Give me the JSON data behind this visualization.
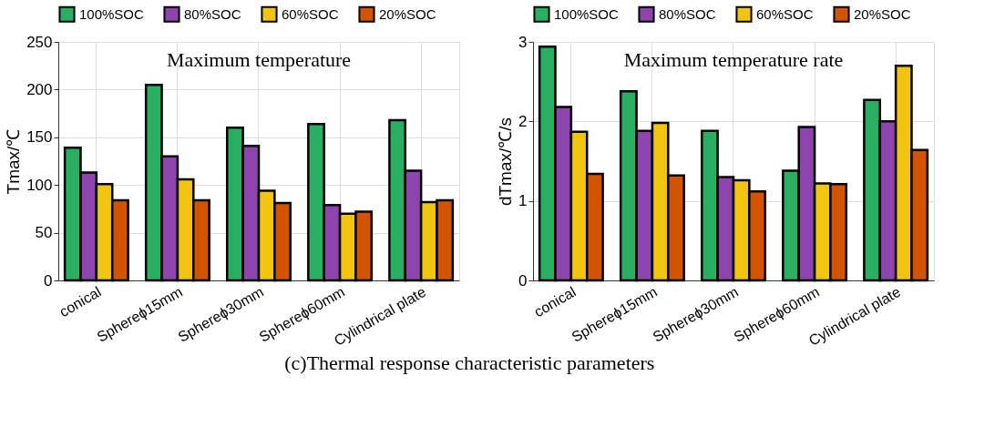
{
  "chart_data": [
    {
      "type": "bar",
      "title": "Maximum temperature",
      "ylabel": "Tmax/℃",
      "categories": [
        "conical",
        "Sphereϕ15mm",
        "Sphereϕ30mm",
        "Sphereϕ60mm",
        "Cylindrical plate"
      ],
      "series": [
        {
          "name": "100%SOC",
          "color": "#2aaf62",
          "values": [
            139,
            205,
            160,
            164,
            168
          ]
        },
        {
          "name": "80%SOC",
          "color": "#8e44ad",
          "values": [
            113,
            130,
            141,
            79,
            115
          ]
        },
        {
          "name": "60%SOC",
          "color": "#f1c40f",
          "values": [
            101,
            106,
            94,
            70,
            82
          ]
        },
        {
          "name": "20%SOC",
          "color": "#d35400",
          "values": [
            84,
            84,
            81,
            72,
            84
          ]
        }
      ],
      "ylim": [
        0,
        250
      ],
      "yticks": [
        0,
        50,
        100,
        150,
        200,
        250
      ],
      "grid": true,
      "legend": "top",
      "annotations": [
        "(c)Thermal response characteristic parameters"
      ]
    },
    {
      "type": "bar",
      "title": "Maximum temperature rate",
      "ylabel": "dTmax/℃/s",
      "categories": [
        "conical",
        "Sphereϕ15mm",
        "Sphereϕ30mm",
        "Sphereϕ60mm",
        "Cylindrical plate"
      ],
      "series": [
        {
          "name": "100%SOC",
          "color": "#2aaf62",
          "values": [
            2.94,
            2.38,
            1.88,
            1.38,
            2.27
          ]
        },
        {
          "name": "80%SOC",
          "color": "#8e44ad",
          "values": [
            2.18,
            1.88,
            1.3,
            1.93,
            2.0
          ]
        },
        {
          "name": "60%SOC",
          "color": "#f1c40f",
          "values": [
            1.87,
            1.98,
            1.26,
            1.22,
            2.7
          ]
        },
        {
          "name": "20%SOC",
          "color": "#d35400",
          "values": [
            1.34,
            1.32,
            1.12,
            1.21,
            1.64
          ]
        }
      ],
      "ylim": [
        0,
        3
      ],
      "yticks": [
        0,
        1,
        2,
        3
      ],
      "grid": true,
      "legend": "top"
    }
  ]
}
